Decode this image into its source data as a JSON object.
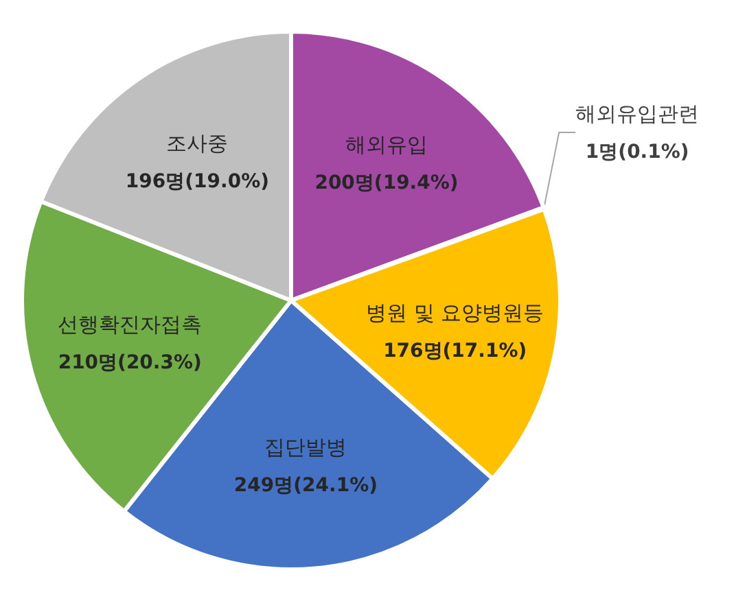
{
  "chart_data": {
    "type": "pie",
    "categories": [
      "해외유입",
      "해외유입관련",
      "병원 및 요양병원등",
      "집단발병",
      "선행확진자접촉",
      "조사중"
    ],
    "values": [
      200,
      1,
      176,
      249,
      210,
      196
    ],
    "value_labels": [
      "200명(19.4%)",
      "1명(0.1%)",
      "176명(17.1%)",
      "249명(24.1%)",
      "210명(20.3%)",
      "196명(19.0%)"
    ],
    "colors": [
      "#a349a4",
      "#ed7d31",
      "#ffc000",
      "#4472c4",
      "#70ad47",
      "#bfbfbf"
    ]
  }
}
